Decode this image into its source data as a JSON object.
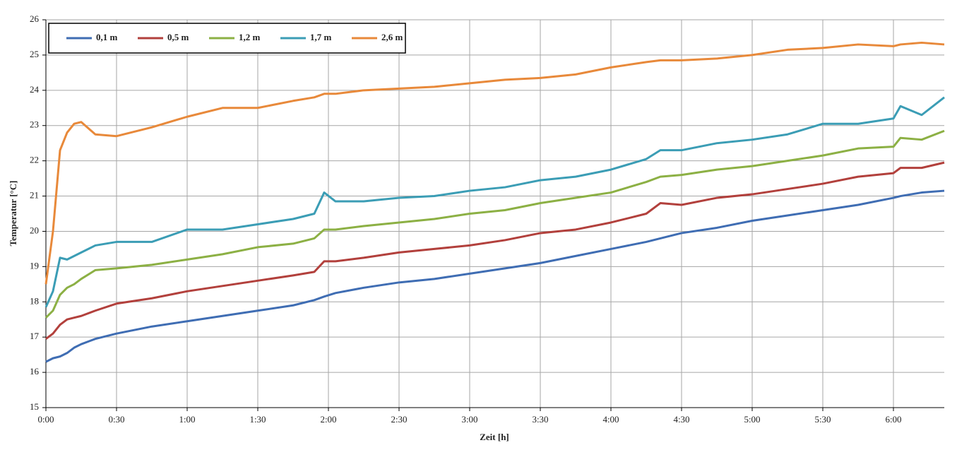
{
  "chart_data": {
    "type": "line",
    "x_label": "Zeit [h]",
    "y_label": "Temperatur  [°C]",
    "x": [
      0,
      0.05,
      0.1,
      0.15,
      0.2,
      0.25,
      0.35,
      0.5,
      0.75,
      1,
      1.25,
      1.5,
      1.75,
      1.9,
      1.97,
      2.05,
      2.25,
      2.5,
      2.75,
      3,
      3.25,
      3.5,
      3.75,
      4,
      4.25,
      4.35,
      4.5,
      4.75,
      5,
      5.25,
      5.5,
      5.75,
      6,
      6.05,
      6.2,
      6.36
    ],
    "series": [
      {
        "name": "0,1 m",
        "color": "#3f6db3",
        "values": [
          16.3,
          16.4,
          16.45,
          16.55,
          16.7,
          16.8,
          16.95,
          17.1,
          17.3,
          17.45,
          17.6,
          17.75,
          17.9,
          18.05,
          18.15,
          18.25,
          18.4,
          18.55,
          18.65,
          18.8,
          18.95,
          19.1,
          19.3,
          19.5,
          19.7,
          19.8,
          19.95,
          20.1,
          20.3,
          20.45,
          20.6,
          20.75,
          20.95,
          21.0,
          21.1,
          21.15
        ]
      },
      {
        "name": "0,5 m",
        "color": "#b2403c",
        "values": [
          16.95,
          17.1,
          17.35,
          17.5,
          17.55,
          17.6,
          17.75,
          17.95,
          18.1,
          18.3,
          18.45,
          18.6,
          18.75,
          18.85,
          19.15,
          19.15,
          19.25,
          19.4,
          19.5,
          19.6,
          19.75,
          19.95,
          20.05,
          20.25,
          20.5,
          20.8,
          20.75,
          20.95,
          21.05,
          21.2,
          21.35,
          21.55,
          21.65,
          21.8,
          21.8,
          21.95
        ]
      },
      {
        "name": "1,2 m",
        "color": "#8cb044",
        "values": [
          17.55,
          17.75,
          18.2,
          18.4,
          18.5,
          18.65,
          18.9,
          18.95,
          19.05,
          19.2,
          19.35,
          19.55,
          19.65,
          19.8,
          20.05,
          20.05,
          20.15,
          20.25,
          20.35,
          20.5,
          20.6,
          20.8,
          20.95,
          21.1,
          21.4,
          21.55,
          21.6,
          21.75,
          21.85,
          22.0,
          22.15,
          22.35,
          22.4,
          22.65,
          22.6,
          22.85
        ]
      },
      {
        "name": "1,7 m",
        "color": "#3b9db5",
        "values": [
          17.85,
          18.3,
          19.25,
          19.2,
          19.3,
          19.4,
          19.6,
          19.7,
          19.7,
          20.05,
          20.05,
          20.2,
          20.35,
          20.5,
          21.1,
          20.85,
          20.85,
          20.95,
          21.0,
          21.15,
          21.25,
          21.45,
          21.55,
          21.75,
          22.05,
          22.3,
          22.3,
          22.5,
          22.6,
          22.75,
          23.05,
          23.05,
          23.2,
          23.55,
          23.3,
          23.8
        ]
      },
      {
        "name": "2,6 m",
        "color": "#e8893a",
        "values": [
          18.5,
          20.0,
          22.3,
          22.8,
          23.05,
          23.1,
          22.75,
          22.7,
          22.95,
          23.25,
          23.5,
          23.5,
          23.7,
          23.8,
          23.9,
          23.9,
          24.0,
          24.05,
          24.1,
          24.2,
          24.3,
          24.35,
          24.45,
          24.65,
          24.8,
          24.85,
          24.85,
          24.9,
          25.0,
          25.15,
          25.2,
          25.3,
          25.25,
          25.3,
          25.35,
          25.3
        ]
      }
    ],
    "xlim": [
      0,
      6.36
    ],
    "xticks": [
      {
        "value": 0,
        "label": "0:00"
      },
      {
        "value": 0.5,
        "label": "0:30"
      },
      {
        "value": 1,
        "label": "1:00"
      },
      {
        "value": 1.5,
        "label": "1:30"
      },
      {
        "value": 2,
        "label": "2:00"
      },
      {
        "value": 2.5,
        "label": "2:30"
      },
      {
        "value": 3,
        "label": "3:00"
      },
      {
        "value": 3.5,
        "label": "3:30"
      },
      {
        "value": 4,
        "label": "4:00"
      },
      {
        "value": 4.5,
        "label": "4:30"
      },
      {
        "value": 5,
        "label": "5:00"
      },
      {
        "value": 5.5,
        "label": "5:30"
      },
      {
        "value": 6,
        "label": "6:00"
      }
    ],
    "ylim": [
      15,
      26
    ],
    "yticks": [
      15,
      16,
      17,
      18,
      19,
      20,
      21,
      22,
      23,
      24,
      25,
      26
    ],
    "grid": true,
    "legend": "top-left"
  }
}
